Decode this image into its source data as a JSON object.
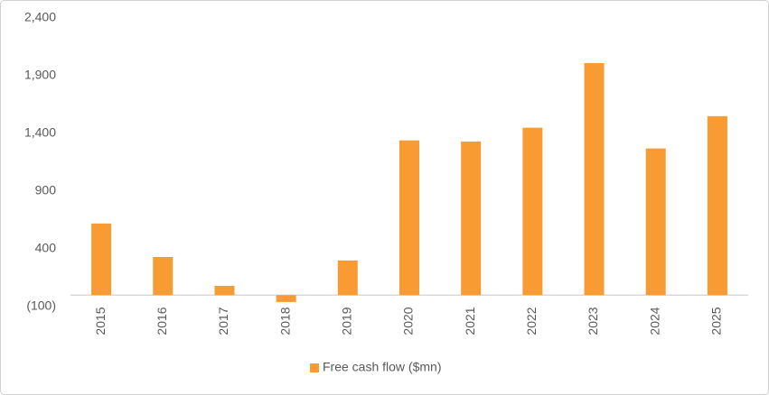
{
  "chart_data": {
    "type": "bar",
    "categories": [
      "2015",
      "2016",
      "2017",
      "2018",
      "2019",
      "2020",
      "2021",
      "2022",
      "2023",
      "2024",
      "2025"
    ],
    "series": [
      {
        "name": "Free cash flow ($mn)",
        "color": "#f99b33",
        "values": [
          620,
          330,
          80,
          -60,
          300,
          1340,
          1330,
          1450,
          2010,
          1270,
          1550
        ]
      }
    ],
    "ylim": [
      -100,
      2400
    ],
    "yticks": [
      {
        "value": -100,
        "label": "(100)"
      },
      400,
      900,
      {
        "value": 1400,
        "label": "1,400"
      },
      {
        "value": 1900,
        "label": "1,900"
      },
      {
        "value": 2400,
        "label": "2,400"
      }
    ],
    "grid": false,
    "legend": "bottom"
  }
}
